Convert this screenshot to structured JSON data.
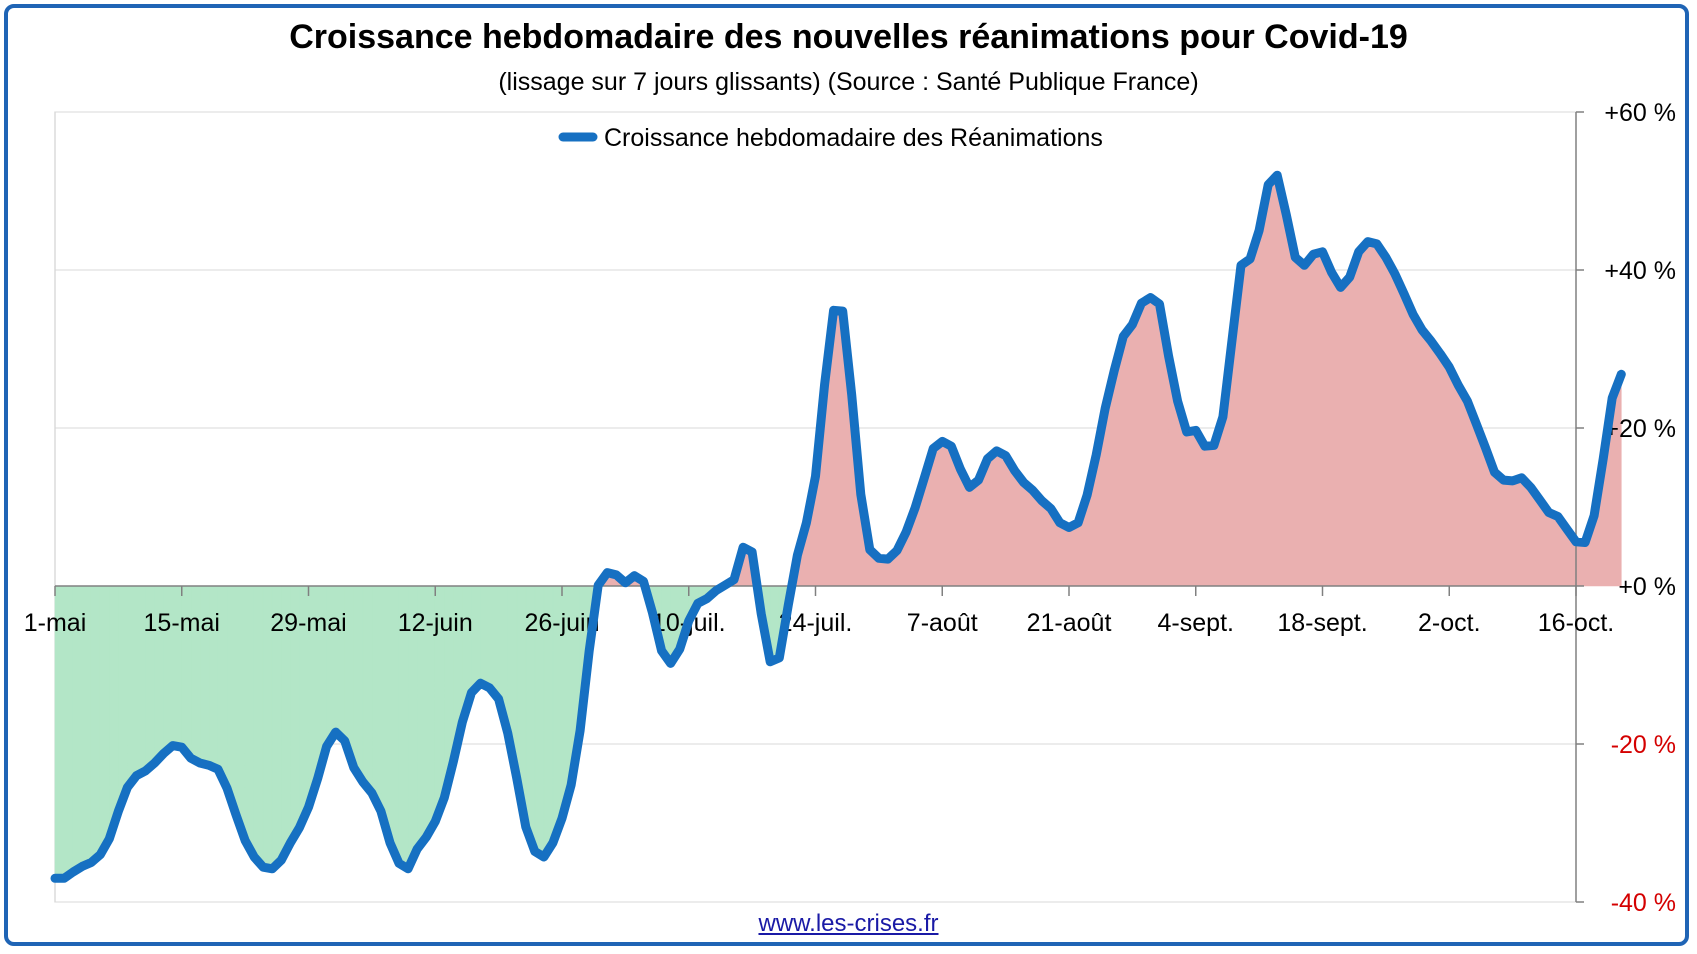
{
  "title": "Croissance hebdomadaire des nouvelles réanimations pour Covid-19",
  "subtitle": "(lissage sur 7 jours glissants) (Source : Santé Publique France)",
  "website": "www.les-crises.fr",
  "colors": {
    "line": "#1670c2",
    "positive_fill": "#eab0b0",
    "negative_fill": "#b3e6c7",
    "negative_tick": "#d40000",
    "positive_tick": "#000000",
    "frame": "#1f64b5"
  },
  "chart_data": {
    "type": "area",
    "series": [
      {
        "name": "Croissance hebdomadaire des Réanimations",
        "x_start": "1-mai",
        "x_step_days": 1,
        "values": [
          -37,
          -37,
          -36.2,
          -35.5,
          -35,
          -34,
          -32,
          -28.5,
          -25.5,
          -24,
          -23.4,
          -22.4,
          -21.2,
          -20.2,
          -20.4,
          -21.8,
          -22.4,
          -22.7,
          -23.2,
          -25.6,
          -29,
          -32.2,
          -34.3,
          -35.6,
          -35.8,
          -34.7,
          -32.5,
          -30.6,
          -28,
          -24.4,
          -20.3,
          -18.5,
          -19.6,
          -23,
          -24.8,
          -26.2,
          -28.5,
          -32.5,
          -35.1,
          -35.8,
          -33.3,
          -31.8,
          -29.8,
          -26.8,
          -22.2,
          -17.2,
          -13.5,
          -12.3,
          -12.9,
          -14.3,
          -18.6,
          -24.3,
          -30.5,
          -33.6,
          -34.3,
          -32.5,
          -29.4,
          -25.2,
          -18.3,
          -8.2,
          0.1,
          1.7,
          1.4,
          0.4,
          1.3,
          0.6,
          -3.4,
          -8.2,
          -9.8,
          -8,
          -4.4,
          -2.2,
          -1.6,
          -0.6,
          0.1,
          0.8,
          4.9,
          4.3,
          -3.5,
          -9.6,
          -9.1,
          -2.4,
          3.9,
          8,
          13.9,
          25.5,
          34.9,
          34.8,
          24.2,
          11.6,
          4.6,
          3.5,
          3.4,
          4.5,
          6.8,
          9.9,
          13.6,
          17.4,
          18.3,
          17.7,
          14.8,
          12.5,
          13.4,
          16.1,
          17.1,
          16.5,
          14.6,
          13.1,
          12.1,
          10.8,
          9.8,
          8,
          7.4,
          8,
          11.5,
          16.6,
          22.5,
          27.3,
          31.6,
          33.1,
          35.8,
          36.5,
          35.7,
          29.1,
          23.4,
          19.5,
          19.7,
          17.7,
          17.8,
          21.4,
          31.1,
          40.6,
          41.4,
          45,
          50.8,
          52,
          47,
          41.6,
          40.6,
          42,
          42.3,
          39.7,
          37.8,
          39.1,
          42.3,
          43.6,
          43.3,
          41.6,
          39.5,
          37,
          34.4,
          32.4,
          31,
          29.4,
          27.7,
          25.4,
          23.4,
          20.5,
          17.5,
          14.4,
          13.4,
          13.3,
          13.7,
          12.5,
          10.9,
          9.3,
          8.8,
          7.2,
          5.6,
          5.5,
          8.9,
          16.1,
          23.8,
          26.8
        ]
      }
    ],
    "x_tick_labels": [
      "1-mai",
      "15-mai",
      "29-mai",
      "12-juin",
      "26-juin",
      "10-juil.",
      "24-juil.",
      "7-août",
      "21-août",
      "4-sept.",
      "18-sept.",
      "2-oct.",
      "16-oct."
    ],
    "x_tick_step_days": 14,
    "y_tick_labels": [
      "+60 %",
      "+40 %",
      "+20 %",
      "+0 %",
      "-20 %",
      "-40 %"
    ],
    "y_tick_values": [
      60,
      40,
      20,
      0,
      -20,
      -40
    ],
    "ylim": [
      -40,
      60
    ],
    "y_axis_side": "right",
    "grid": true,
    "legend_position": "top-center",
    "fill_above_zero": "red",
    "fill_below_zero": "green"
  }
}
